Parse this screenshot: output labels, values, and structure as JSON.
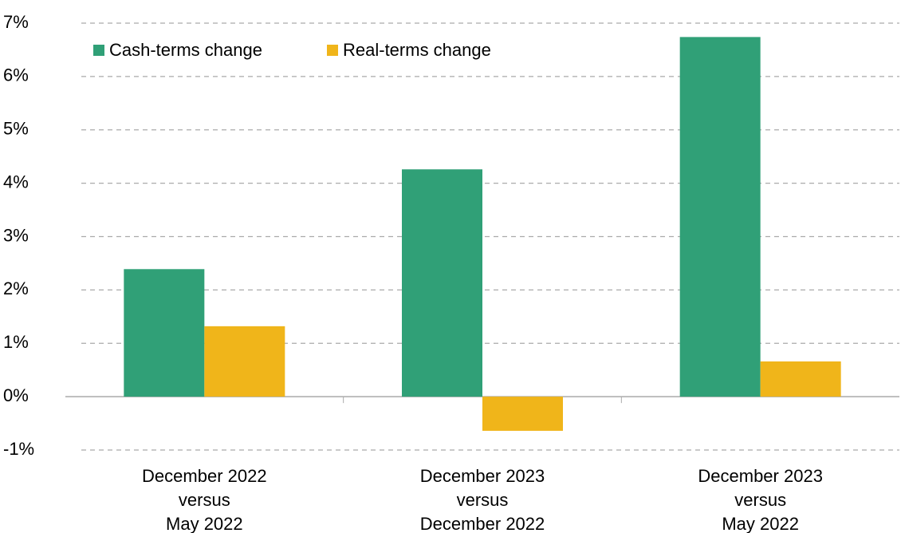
{
  "chart_data": {
    "type": "bar",
    "categories": [
      [
        "December 2022",
        "versus",
        "May 2022"
      ],
      [
        "December 2023",
        "versus",
        "December 2022"
      ],
      [
        "December 2023",
        "versus",
        "May 2022"
      ]
    ],
    "series": [
      {
        "name": "Cash-terms change",
        "color": "#30a077",
        "values": [
          2.39,
          4.26,
          6.74
        ]
      },
      {
        "name": "Real-terms change",
        "color": "#f0b51a",
        "values": [
          1.32,
          -0.64,
          0.66
        ]
      }
    ],
    "ylim": [
      -1,
      7
    ],
    "yticks": [
      {
        "value": -1,
        "label": "-1%"
      },
      {
        "value": 0,
        "label": "0%"
      },
      {
        "value": 1,
        "label": "1%"
      },
      {
        "value": 2,
        "label": "2%"
      },
      {
        "value": 3,
        "label": "3%"
      },
      {
        "value": 4,
        "label": "4%"
      },
      {
        "value": 5,
        "label": "5%"
      },
      {
        "value": 6,
        "label": "6%"
      },
      {
        "value": 7,
        "label": "7%"
      }
    ],
    "grid": true,
    "legend": "top-left"
  }
}
